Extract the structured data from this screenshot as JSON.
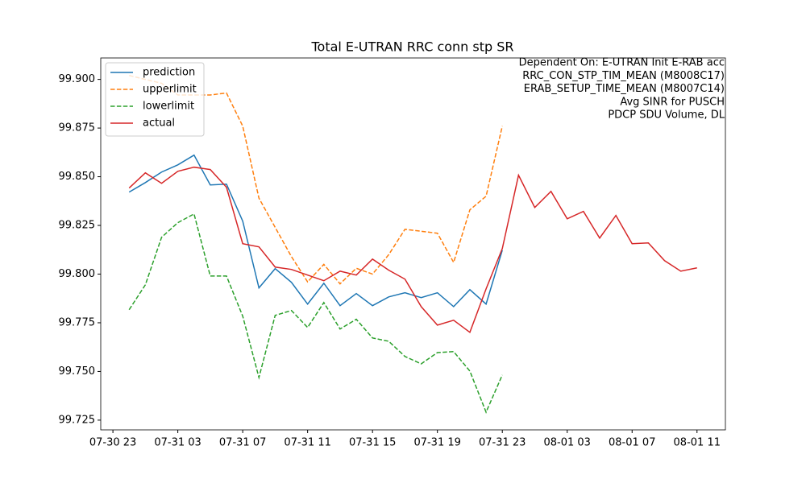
{
  "chart_data": {
    "type": "line",
    "title": "Total E-UTRAN RRC conn stp SR",
    "annotation_lines": [
      "Dependent On: E-UTRAN Init E-RAB acc",
      "RRC_CON_STP_TIM_MEAN (M8008C17)",
      "ERAB_SETUP_TIME_MEAN (M8007C14)",
      "Avg SINR for PUSCH",
      "PDCP SDU Volume, DL"
    ],
    "x": [
      "07-31 00",
      "07-31 01",
      "07-31 02",
      "07-31 03",
      "07-31 04",
      "07-31 05",
      "07-31 06",
      "07-31 07",
      "07-31 08",
      "07-31 09",
      "07-31 10",
      "07-31 11",
      "07-31 12",
      "07-31 13",
      "07-31 14",
      "07-31 15",
      "07-31 16",
      "07-31 17",
      "07-31 18",
      "07-31 19",
      "07-31 20",
      "07-31 21",
      "07-31 22",
      "07-31 23",
      "08-01 00",
      "08-01 01",
      "08-01 02",
      "08-01 03",
      "08-01 04",
      "08-01 05",
      "08-01 06",
      "08-01 07",
      "08-01 08",
      "08-01 09",
      "08-01 10",
      "08-01 11"
    ],
    "series": [
      {
        "name": "prediction",
        "color": "#1f77b4",
        "dashed": false,
        "values": [
          99.8421,
          99.847,
          99.8524,
          99.8561,
          99.8611,
          99.8458,
          99.8462,
          99.8272,
          99.7929,
          99.8028,
          99.7958,
          99.7846,
          99.7953,
          99.7838,
          99.79,
          99.7838,
          99.7883,
          99.7904,
          99.7879,
          99.7904,
          99.7833,
          99.792,
          99.7846,
          99.8123,
          null,
          null,
          null,
          null,
          null,
          null,
          null,
          null,
          null,
          null,
          null,
          null
        ]
      },
      {
        "name": "upperlimit",
        "color": "#ff7f0e",
        "dashed": true,
        "values": [
          99.902,
          99.9,
          99.898,
          99.892,
          99.892,
          99.892,
          99.893,
          99.876,
          99.839,
          99.824,
          99.809,
          99.796,
          99.805,
          99.795,
          99.803,
          99.8,
          99.81,
          99.823,
          99.822,
          99.821,
          99.806,
          99.833,
          99.84,
          99.876,
          null,
          null,
          null,
          null,
          null,
          null,
          null,
          null,
          null,
          null,
          null,
          null
        ]
      },
      {
        "name": "lowerlimit",
        "color": "#2ca02c",
        "dashed": true,
        "values": [
          99.7817,
          99.7945,
          99.8189,
          99.8264,
          99.8309,
          99.799,
          99.799,
          99.7784,
          99.7469,
          99.7788,
          99.7813,
          99.7726,
          99.7854,
          99.7718,
          99.7768,
          99.7672,
          99.7655,
          99.7577,
          99.7539,
          99.7597,
          99.7602,
          99.7502,
          99.7291,
          99.7482,
          null,
          null,
          null,
          null,
          null,
          null,
          null,
          null,
          null,
          null,
          null,
          null
        ]
      },
      {
        "name": "actual",
        "color": "#d62728",
        "dashed": false,
        "values": [
          99.8442,
          99.852,
          99.8466,
          99.8528,
          99.8549,
          99.8537,
          99.8446,
          99.8156,
          99.814,
          99.8036,
          99.8024,
          99.7995,
          99.7966,
          99.8015,
          99.7995,
          99.8077,
          99.802,
          99.7974,
          99.7833,
          99.7738,
          99.7763,
          99.7701,
          99.7924,
          99.8131,
          99.8508,
          99.8342,
          99.8425,
          99.8284,
          99.8322,
          99.8185,
          99.8301,
          99.8156,
          99.816,
          99.8069,
          99.8015,
          99.8032
        ]
      }
    ],
    "ylim": [
      99.72,
      99.911
    ],
    "yticks": [
      99.725,
      {
        "value": 99.75,
        "label": "99.750"
      },
      99.775,
      {
        "value": 99.8,
        "label": "99.800"
      },
      99.825,
      {
        "value": 99.85,
        "label": "99.850"
      },
      99.875,
      {
        "value": 99.9,
        "label": "99.900"
      }
    ],
    "xticks": [
      "07-30 23",
      "07-31 03",
      "07-31 07",
      "07-31 11",
      "07-31 15",
      "07-31 19",
      "07-31 23",
      "08-01 03",
      "08-01 07",
      "08-01 11"
    ],
    "legend": "upper left"
  }
}
